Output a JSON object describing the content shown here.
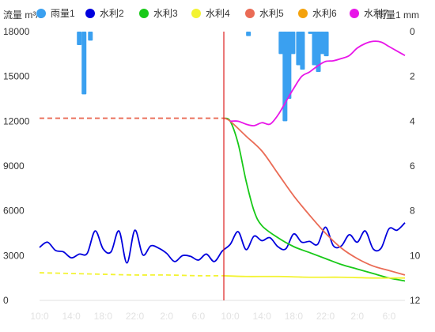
{
  "chart_data": {
    "type": "line",
    "left_axis_label": "流量 m³/s",
    "right_axis_label": "雨量1 mm",
    "left_axis": {
      "min": 0,
      "max": 18000,
      "ticks": [
        0,
        3000,
        6000,
        9000,
        12000,
        15000,
        18000
      ],
      "tick_labels": [
        "0",
        "3000",
        "6000",
        "9000",
        "12000",
        "15000",
        "18000"
      ]
    },
    "right_axis": {
      "min": 0,
      "max": 12,
      "ticks": [
        0,
        2,
        4,
        6,
        8,
        10,
        12
      ],
      "tick_labels": [
        "0",
        "2",
        "4",
        "6",
        "8",
        "10",
        "12"
      ],
      "inverted": true
    },
    "x_ticks": [
      {
        "x": 0,
        "label": "10:0"
      },
      {
        "x": 4,
        "label": "14:0"
      },
      {
        "x": 8,
        "label": "18:0"
      },
      {
        "x": 12,
        "label": "22:0"
      },
      {
        "x": 16,
        "label": "2:0"
      },
      {
        "x": 20,
        "label": "6:0"
      },
      {
        "x": 24,
        "label": "10:0"
      },
      {
        "x": 28,
        "label": "14:0"
      },
      {
        "x": 32,
        "label": "18:0"
      },
      {
        "x": 36,
        "label": "22:0"
      },
      {
        "x": 40,
        "label": "2:0"
      },
      {
        "x": 44,
        "label": "6:0"
      }
    ],
    "x_domain": [
      0,
      46
    ],
    "forecast_start_x": 23.2,
    "legend": [
      {
        "name": "雨量1",
        "color": "#3aa0f0",
        "marker": "circle"
      },
      {
        "name": "水利2",
        "color": "#0000dd",
        "marker": "circle"
      },
      {
        "name": "水利3",
        "color": "#18c918",
        "marker": "circle"
      },
      {
        "name": "水利4",
        "color": "#f3f332",
        "marker": "circle"
      },
      {
        "name": "水利5",
        "color": "#ea6b55",
        "marker": "circle"
      },
      {
        "name": "水利6",
        "color": "#f4a20d",
        "marker": "circle"
      },
      {
        "name": "水利7",
        "color": "#e816e8",
        "marker": "circle"
      }
    ],
    "rain_bars": {
      "name": "雨量1",
      "color": "#3aa0f0",
      "points": [
        [
          5,
          0.6
        ],
        [
          5.6,
          2.8
        ],
        [
          6.4,
          0.4
        ],
        [
          26.3,
          0.2
        ],
        [
          30.4,
          1.0
        ],
        [
          30.9,
          4.0
        ],
        [
          31.4,
          3.0
        ],
        [
          31.9,
          1.0
        ],
        [
          32.6,
          1.5
        ],
        [
          33.1,
          1.7
        ],
        [
          33.6,
          0.0
        ],
        [
          34.1,
          0.1
        ],
        [
          34.6,
          1.5
        ],
        [
          35.1,
          1.8
        ],
        [
          35.6,
          1.0
        ],
        [
          36.1,
          1.1
        ]
      ]
    },
    "series": [
      {
        "name": "水利2",
        "color": "#0000dd",
        "style": "solid",
        "points": [
          [
            0,
            3550
          ],
          [
            1,
            3900
          ],
          [
            2,
            3350
          ],
          [
            3,
            3250
          ],
          [
            4,
            2850
          ],
          [
            5,
            3100
          ],
          [
            6,
            3150
          ],
          [
            7,
            4650
          ],
          [
            8,
            3450
          ],
          [
            9,
            3250
          ],
          [
            10,
            4650
          ],
          [
            11,
            2500
          ],
          [
            12,
            4700
          ],
          [
            13,
            3050
          ],
          [
            14,
            3650
          ],
          [
            15,
            3500
          ],
          [
            16,
            3150
          ],
          [
            17,
            2600
          ],
          [
            18,
            3000
          ],
          [
            19,
            2950
          ],
          [
            20,
            2700
          ],
          [
            21,
            3100
          ],
          [
            22,
            2600
          ],
          [
            23,
            3300
          ],
          [
            24,
            3750
          ],
          [
            25,
            4600
          ],
          [
            26,
            3400
          ],
          [
            27,
            4300
          ],
          [
            28,
            4000
          ],
          [
            29,
            4200
          ],
          [
            30,
            3600
          ],
          [
            31,
            3450
          ],
          [
            32,
            4450
          ],
          [
            33,
            3900
          ],
          [
            34,
            3950
          ],
          [
            35,
            3750
          ],
          [
            36,
            4900
          ],
          [
            37,
            3650
          ],
          [
            38,
            3650
          ],
          [
            39,
            4400
          ],
          [
            40,
            3900
          ],
          [
            41,
            4650
          ],
          [
            42,
            3450
          ],
          [
            43,
            3500
          ],
          [
            44,
            4800
          ],
          [
            45,
            4700
          ],
          [
            46,
            5200
          ]
        ]
      },
      {
        "name": "水利3",
        "color": "#18c918",
        "style": "solid",
        "points": [
          [
            23.2,
            12200
          ],
          [
            24,
            12000
          ],
          [
            25,
            10500
          ],
          [
            26,
            8000
          ],
          [
            27,
            6000
          ],
          [
            28,
            5000
          ],
          [
            30,
            4200
          ],
          [
            32,
            3600
          ],
          [
            34,
            3200
          ],
          [
            36,
            2800
          ],
          [
            38,
            2400
          ],
          [
            40,
            2100
          ],
          [
            42,
            1800
          ],
          [
            44,
            1500
          ],
          [
            46,
            1300
          ]
        ]
      },
      {
        "name": "水利4",
        "color": "#f3f332",
        "style": "dashed-then-solid",
        "points": [
          [
            0,
            1850
          ],
          [
            4,
            1800
          ],
          [
            8,
            1750
          ],
          [
            12,
            1700
          ],
          [
            16,
            1700
          ],
          [
            20,
            1650
          ],
          [
            23.2,
            1650
          ],
          [
            26,
            1600
          ],
          [
            30,
            1600
          ],
          [
            34,
            1550
          ],
          [
            38,
            1550
          ],
          [
            42,
            1500
          ],
          [
            46,
            1500
          ]
        ]
      },
      {
        "name": "水利5",
        "color": "#ea6b55",
        "style": "dashed-then-solid",
        "points": [
          [
            0,
            12200
          ],
          [
            4,
            12200
          ],
          [
            8,
            12200
          ],
          [
            12,
            12200
          ],
          [
            16,
            12200
          ],
          [
            20,
            12200
          ],
          [
            23.2,
            12200
          ],
          [
            24,
            12000
          ],
          [
            26,
            11000
          ],
          [
            28,
            10000
          ],
          [
            30,
            8500
          ],
          [
            32,
            7000
          ],
          [
            34,
            5700
          ],
          [
            36,
            4500
          ],
          [
            38,
            3500
          ],
          [
            40,
            2800
          ],
          [
            42,
            2300
          ],
          [
            44,
            2000
          ],
          [
            46,
            1700
          ]
        ]
      },
      {
        "name": "水利7",
        "color": "#e816e8",
        "style": "solid",
        "points": [
          [
            24,
            12000
          ],
          [
            25,
            12000
          ],
          [
            26,
            11800
          ],
          [
            27,
            11700
          ],
          [
            28,
            11900
          ],
          [
            29,
            11800
          ],
          [
            30,
            12400
          ],
          [
            31,
            13300
          ],
          [
            32,
            14200
          ],
          [
            33,
            15000
          ],
          [
            34,
            15300
          ],
          [
            35,
            15700
          ],
          [
            36,
            16000
          ],
          [
            37,
            16050
          ],
          [
            38,
            16200
          ],
          [
            39,
            16400
          ],
          [
            40,
            16900
          ],
          [
            41,
            17200
          ],
          [
            42,
            17350
          ],
          [
            43,
            17300
          ],
          [
            44,
            17000
          ],
          [
            45,
            16700
          ],
          [
            46,
            16400
          ]
        ]
      }
    ]
  }
}
